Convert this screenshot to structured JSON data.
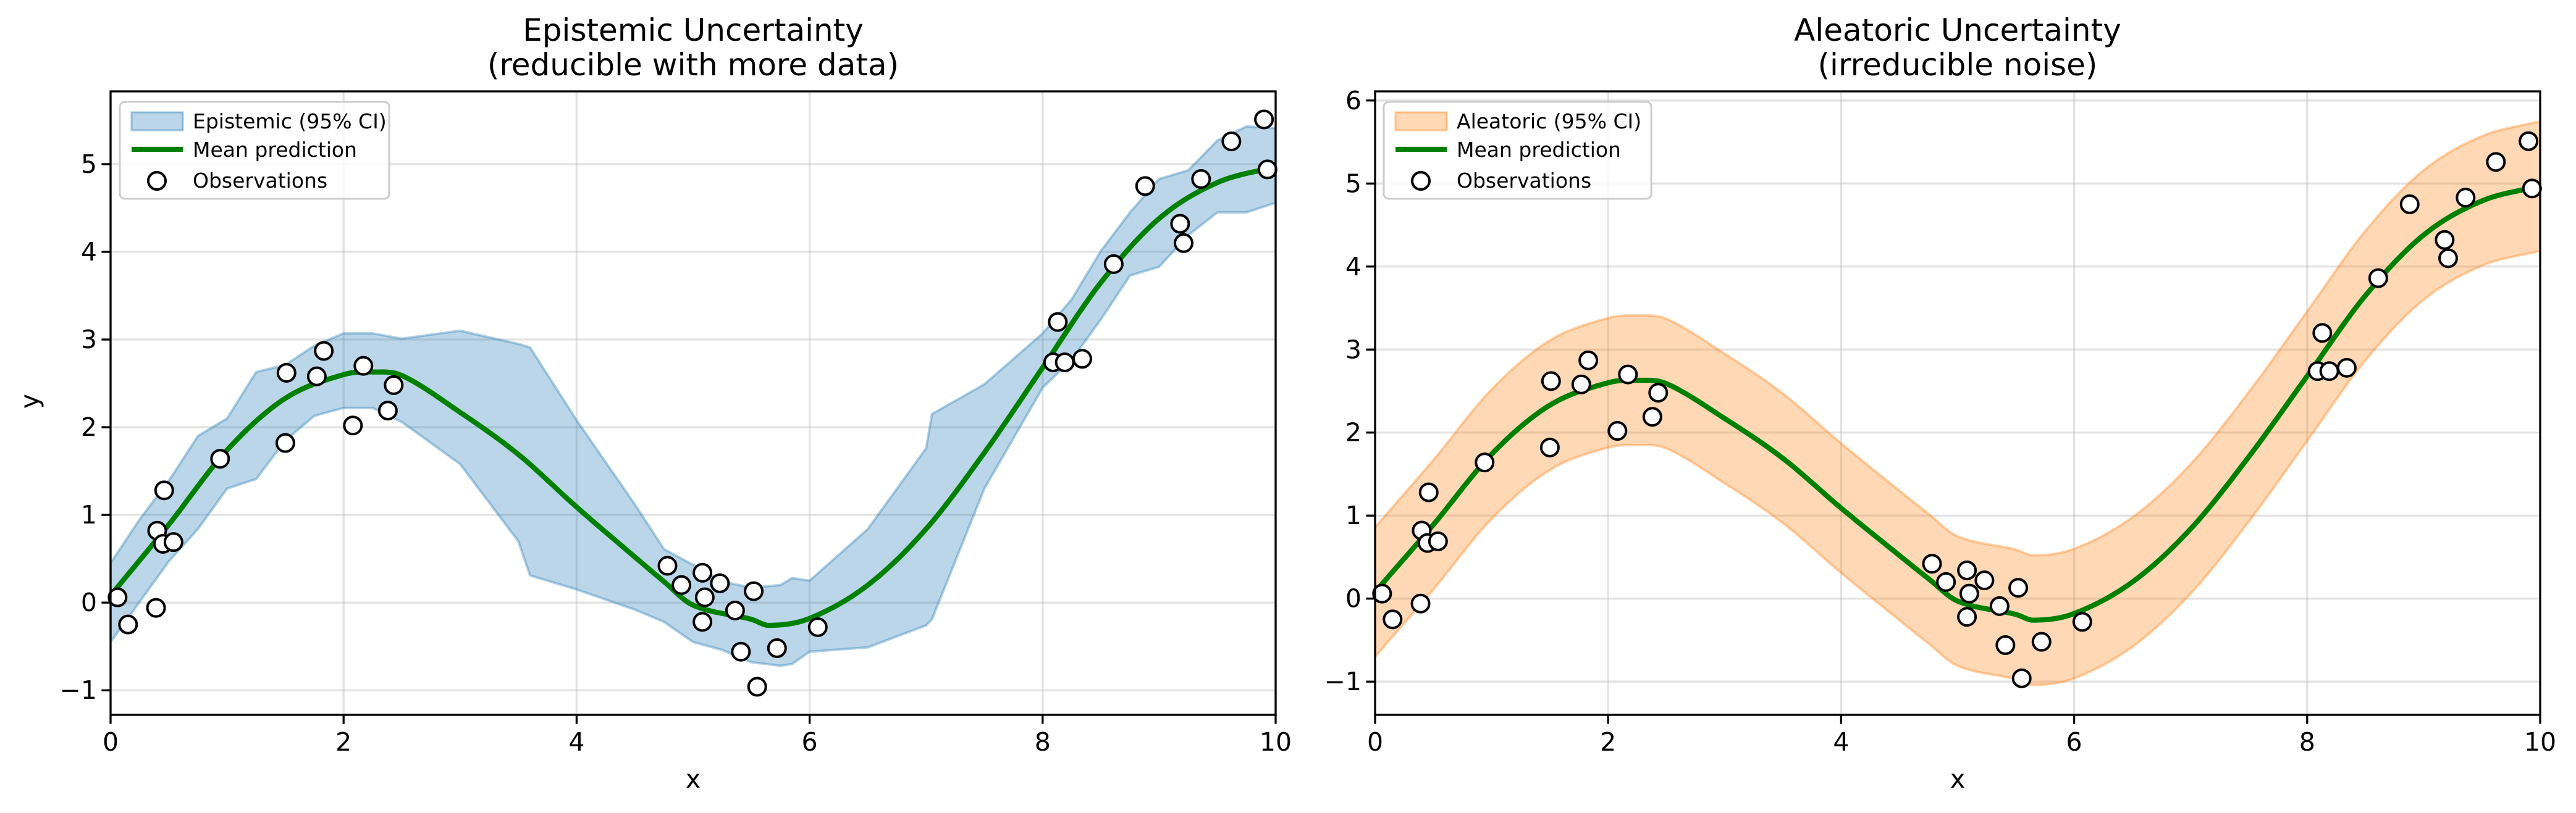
{
  "chart_data": [
    {
      "type": "line",
      "title": [
        "Epistemic Uncertainty",
        "(reducible with more data)"
      ],
      "xlabel": "x",
      "ylabel": "y",
      "xlim": [
        0,
        10
      ],
      "ylim": [
        -1.28,
        5.83
      ],
      "xticks": [
        0,
        2,
        4,
        6,
        8,
        10
      ],
      "yticks": [
        -1,
        0,
        1,
        2,
        3,
        4,
        5
      ],
      "grid": true,
      "legend_position": "top-left",
      "band": {
        "name": "Epistemic (95% CI)",
        "color": "#1f77b4",
        "x": [
          0,
          0.25,
          0.5,
          0.75,
          1,
          1.25,
          1.5,
          1.75,
          2,
          2.25,
          2.5,
          3,
          3.5,
          3.6,
          4,
          4.5,
          4.75,
          5,
          5.25,
          5.5,
          5.75,
          5.85,
          6,
          6.5,
          7,
          7.05,
          7.5,
          8,
          8.25,
          8.5,
          8.75,
          9,
          9.25,
          9.5,
          9.75,
          10
        ],
        "upper": [
          0.45,
          0.95,
          1.39,
          1.9,
          2.1,
          2.63,
          2.71,
          2.93,
          3.07,
          3.07,
          3.01,
          3.1,
          2.95,
          2.91,
          2.08,
          1.12,
          0.61,
          0.43,
          0.24,
          0.17,
          0.2,
          0.28,
          0.25,
          0.84,
          1.76,
          2.15,
          2.49,
          3.07,
          3.46,
          4.01,
          4.45,
          4.83,
          4.93,
          5.27,
          5.43,
          5.41
        ],
        "lower": [
          -0.45,
          0.01,
          0.47,
          0.84,
          1.3,
          1.41,
          1.85,
          2.13,
          2.22,
          2.22,
          2.06,
          1.58,
          0.7,
          0.31,
          0.15,
          -0.08,
          -0.22,
          -0.45,
          -0.54,
          -0.68,
          -0.72,
          -0.7,
          -0.56,
          -0.51,
          -0.26,
          -0.19,
          1.3,
          2.45,
          2.77,
          3.23,
          3.73,
          3.83,
          4.19,
          4.45,
          4.45,
          4.56
        ]
      },
      "series": [
        {
          "name": "Mean prediction",
          "color": "#008000",
          "x": [
            0,
            0.5,
            1,
            1.5,
            2,
            2.25,
            2.5,
            3,
            3.5,
            4,
            4.5,
            4.75,
            5,
            5.5,
            5.65,
            6,
            6.5,
            7,
            7.5,
            8,
            8.5,
            9,
            9.5,
            10
          ],
          "y": [
            0.08,
            0.89,
            1.74,
            2.33,
            2.6,
            2.63,
            2.59,
            2.17,
            1.69,
            1.09,
            0.52,
            0.24,
            -0.03,
            -0.19,
            -0.26,
            -0.18,
            0.2,
            0.84,
            1.71,
            2.68,
            3.65,
            4.38,
            4.79,
            4.97
          ]
        }
      ],
      "scatter": {
        "name": "Observations",
        "x": [
          0.06,
          0.15,
          0.39,
          0.4,
          0.46,
          0.45,
          0.54,
          0.94,
          1.51,
          1.5,
          1.77,
          1.83,
          2.08,
          2.17,
          2.38,
          2.43,
          4.78,
          4.9,
          5.08,
          5.1,
          5.23,
          5.08,
          5.36,
          5.52,
          5.41,
          5.72,
          5.55,
          6.07,
          8.09,
          8.19,
          8.34,
          8.13,
          8.61,
          8.88,
          9.18,
          9.21,
          9.36,
          9.62,
          9.9,
          9.93
        ],
        "y": [
          0.06,
          -0.25,
          -0.06,
          0.82,
          1.28,
          0.67,
          0.69,
          1.64,
          2.62,
          1.82,
          2.58,
          2.87,
          2.02,
          2.7,
          2.19,
          2.48,
          0.42,
          0.2,
          0.34,
          0.06,
          0.22,
          -0.22,
          -0.09,
          0.13,
          -0.56,
          -0.52,
          -0.96,
          -0.28,
          2.74,
          2.74,
          2.78,
          3.2,
          3.86,
          4.75,
          4.32,
          4.1,
          4.83,
          5.26,
          5.51,
          4.94
        ]
      }
    },
    {
      "type": "line",
      "title": [
        "Aleatoric Uncertainty",
        "(irreducible noise)"
      ],
      "xlabel": "x",
      "ylabel": "",
      "xlim": [
        0,
        10
      ],
      "ylim": [
        -1.4,
        6.11
      ],
      "xticks": [
        0,
        2,
        4,
        6,
        8,
        10
      ],
      "yticks": [
        -1,
        0,
        1,
        2,
        3,
        4,
        5,
        6
      ],
      "grid": true,
      "legend_position": "top-left",
      "band": {
        "name": "Aleatoric (95% CI)",
        "color": "#ff7f0e",
        "half_width": 0.78
      },
      "series": [
        {
          "name": "Mean prediction",
          "color": "#008000",
          "x": [
            0,
            0.5,
            1,
            1.5,
            2,
            2.25,
            2.5,
            3,
            3.5,
            4,
            4.5,
            4.75,
            5,
            5.5,
            5.65,
            6,
            6.5,
            7,
            7.5,
            8,
            8.5,
            9,
            9.5,
            10
          ],
          "y": [
            0.08,
            0.89,
            1.74,
            2.33,
            2.6,
            2.63,
            2.59,
            2.17,
            1.69,
            1.09,
            0.52,
            0.24,
            -0.03,
            -0.19,
            -0.26,
            -0.18,
            0.2,
            0.84,
            1.71,
            2.68,
            3.65,
            4.38,
            4.79,
            4.97
          ]
        }
      ],
      "scatter": {
        "name": "Observations",
        "x": [
          0.06,
          0.15,
          0.39,
          0.4,
          0.46,
          0.45,
          0.54,
          0.94,
          1.51,
          1.5,
          1.77,
          1.83,
          2.08,
          2.17,
          2.38,
          2.43,
          4.78,
          4.9,
          5.08,
          5.1,
          5.23,
          5.08,
          5.36,
          5.52,
          5.41,
          5.72,
          5.55,
          6.07,
          8.09,
          8.19,
          8.34,
          8.13,
          8.61,
          8.88,
          9.18,
          9.21,
          9.36,
          9.62,
          9.9,
          9.93
        ],
        "y": [
          0.06,
          -0.25,
          -0.06,
          0.82,
          1.28,
          0.67,
          0.69,
          1.64,
          2.62,
          1.82,
          2.58,
          2.87,
          2.02,
          2.7,
          2.19,
          2.48,
          0.42,
          0.2,
          0.34,
          0.06,
          0.22,
          -0.22,
          -0.09,
          0.13,
          -0.56,
          -0.52,
          -0.96,
          -0.28,
          2.74,
          2.74,
          2.78,
          3.2,
          3.86,
          4.75,
          4.32,
          4.1,
          4.83,
          5.26,
          5.51,
          4.94
        ]
      }
    }
  ]
}
